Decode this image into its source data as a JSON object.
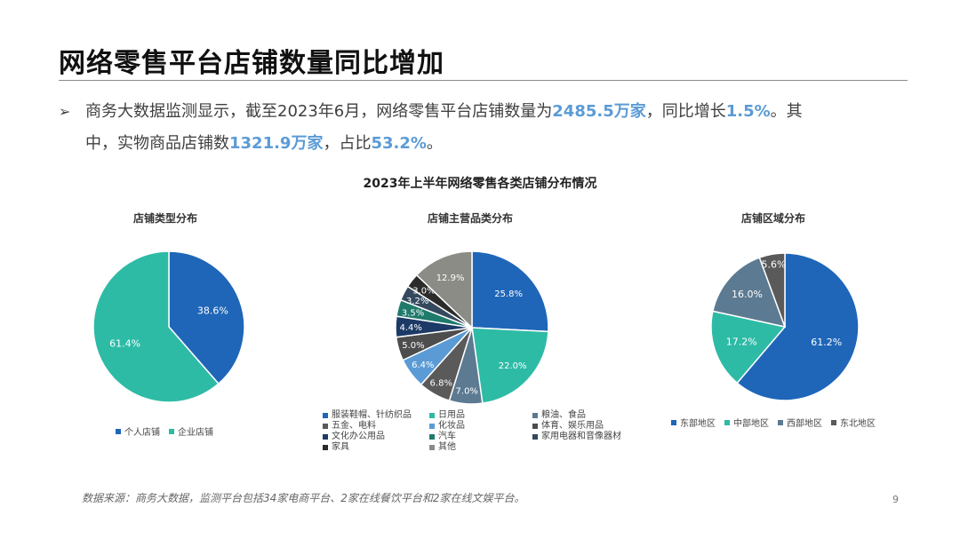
{
  "title": "网络零售平台店铺数量同比增加",
  "bullet": {
    "arrow": "➢",
    "p1": "商务大数据监测显示，截至2023年6月，网络零售平台店铺数量为",
    "h1": "2485.5万家",
    "p2": "，同比增长",
    "h2": "1.5%",
    "p3": "。其",
    "p4": "中，实物商品店铺数",
    "h3": "1321.9万家",
    "p5": "，占比",
    "h4": "53.2%",
    "p6": "。"
  },
  "main_chart_title": "2023年上半年网络零售各类店铺分布情况",
  "source": "数据来源：商务大数据，监测平台包括34家电商平台、2家在线餐饮平台和2家在线文娱平台。",
  "page_number": "9",
  "chart_data": [
    {
      "type": "pie",
      "title": "店铺类型分布",
      "categories": [
        "个人店铺",
        "企业店铺"
      ],
      "values": [
        38.6,
        61.4
      ],
      "labels": [
        "38.6%",
        "61.4%"
      ],
      "colors": [
        "#1f66b8",
        "#2dbba6"
      ],
      "label_colors": [
        "#ffffff",
        "#ffffff"
      ],
      "legend_position": "bottom"
    },
    {
      "type": "pie",
      "title": "店铺主营品类分布",
      "categories": [
        "服装鞋帽、针纺织品",
        "日用品",
        "粮油、食品",
        "五金、电料",
        "化妆品",
        "体育、娱乐用品",
        "文化办公用品",
        "汽车",
        "家用电器和音像器材",
        "家具",
        "其他"
      ],
      "values": [
        25.8,
        22.0,
        7.0,
        6.8,
        6.4,
        5.0,
        4.4,
        3.5,
        3.2,
        3.0,
        12.9
      ],
      "labels": [
        "25.8%",
        "22.0%",
        "7.0%",
        "6.8%",
        "6.4%",
        "5.0%",
        "4.4%",
        "3.5%",
        "3.2%",
        "3.0%",
        "12.9%"
      ],
      "colors": [
        "#1f66b8",
        "#2dbba6",
        "#5c7a92",
        "#5a5a5a",
        "#5b9bd5",
        "#4d4d4d",
        "#1d3a66",
        "#1f7a6c",
        "#34495e",
        "#2b2b2b",
        "#8c8c86"
      ],
      "label_colors": [
        "#ffffff",
        "#ffffff",
        "#ffffff",
        "#ffffff",
        "#ffffff",
        "#ffffff",
        "#ffffff",
        "#ffffff",
        "#ffffff",
        "#ffffff",
        "#ffffff"
      ],
      "legend_position": "bottom"
    },
    {
      "type": "pie",
      "title": "店铺区域分布",
      "categories": [
        "东部地区",
        "中部地区",
        "西部地区",
        "东北地区"
      ],
      "values": [
        61.2,
        17.2,
        16.0,
        5.6
      ],
      "labels": [
        "61.2%",
        "17.2%",
        "16.0%",
        "5.6%"
      ],
      "colors": [
        "#1f66b8",
        "#2dbba6",
        "#5c7a92",
        "#5a5a5a"
      ],
      "label_colors": [
        "#ffffff",
        "#ffffff",
        "#ffffff",
        "#ffffff"
      ],
      "legend_position": "bottom"
    }
  ]
}
